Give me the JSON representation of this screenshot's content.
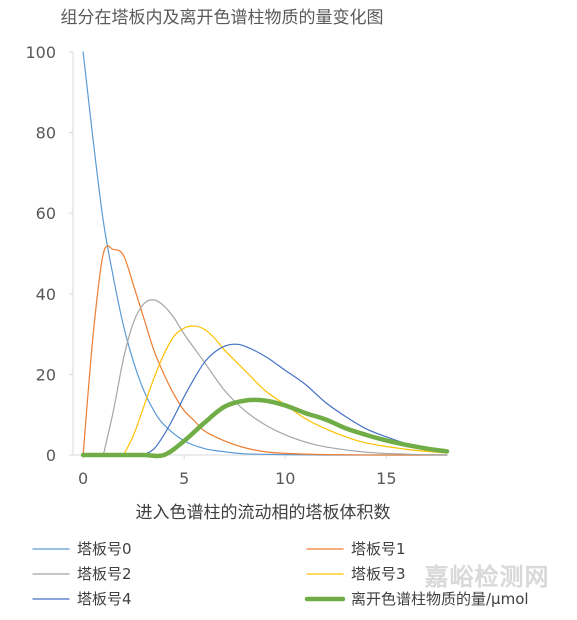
{
  "chart_data": {
    "type": "line",
    "title": "组分在塔板内及离开色谱柱物质的量变化图",
    "xlabel": "进入色谱柱的流动相的塔板体积数",
    "ylabel": "",
    "xlim": [
      -0.5,
      18
    ],
    "ylim": [
      0,
      100
    ],
    "xticks": [
      0,
      5,
      10,
      15
    ],
    "yticks": [
      0,
      20,
      40,
      60,
      80,
      100
    ],
    "grid": false,
    "legend_position": "bottom",
    "series": [
      {
        "name": "塔板号0",
        "color": "#5b9bd5",
        "width": 1.2,
        "x": [
          0,
          0.5,
          1,
          1.5,
          2,
          2.5,
          3,
          3.5,
          4,
          5,
          6,
          7,
          8,
          10,
          12,
          15,
          18
        ],
        "values": [
          100,
          78,
          58,
          44,
          32,
          23,
          16,
          11,
          7.5,
          3.5,
          1.6,
          0.8,
          0.3,
          0.1,
          0,
          0,
          0
        ]
      },
      {
        "name": "塔板号1",
        "color": "#ed7d31",
        "width": 1.2,
        "x": [
          0,
          0.5,
          1,
          1.5,
          2,
          2.5,
          3,
          3.5,
          4,
          4.5,
          5,
          5.5,
          6,
          7,
          8,
          9,
          10,
          12,
          15,
          18
        ],
        "values": [
          0,
          30,
          50,
          51,
          49.5,
          42,
          34,
          26,
          20,
          15,
          11,
          8.5,
          6,
          3.5,
          1.8,
          0.8,
          0.4,
          0.1,
          0,
          0
        ]
      },
      {
        "name": "塔板号2",
        "color": "#a5a5a5",
        "width": 1.2,
        "x": [
          1,
          1.5,
          2,
          2.5,
          3,
          3.5,
          4,
          4.5,
          5,
          6,
          7,
          8,
          9,
          10,
          11,
          12,
          14,
          16,
          18
        ],
        "values": [
          0,
          11,
          24,
          33,
          37.5,
          38.5,
          37,
          34,
          30,
          23,
          16,
          11,
          7.5,
          5,
          3.2,
          2,
          0.7,
          0.2,
          0
        ]
      },
      {
        "name": "塔板号3",
        "color": "#ffc000",
        "width": 1.2,
        "x": [
          2,
          2.5,
          3,
          3.5,
          4,
          4.5,
          5,
          5.5,
          6,
          6.5,
          7,
          8,
          9,
          10,
          11,
          12,
          13,
          14,
          16,
          18
        ],
        "values": [
          0,
          5,
          12,
          19,
          25,
          29.5,
          31.5,
          32,
          31.2,
          29,
          26,
          21,
          16,
          12.5,
          9,
          6.5,
          4.5,
          3,
          1.4,
          0.5
        ]
      },
      {
        "name": "塔板号4",
        "color": "#4472c4",
        "width": 1.2,
        "x": [
          3,
          3.5,
          4,
          4.5,
          5,
          5.5,
          6,
          6.5,
          7,
          7.5,
          8,
          9,
          10,
          11,
          12,
          13,
          14,
          15,
          16,
          17,
          18
        ],
        "values": [
          0,
          1.5,
          5,
          9.5,
          14.5,
          19,
          23,
          25.5,
          27,
          27.5,
          27,
          24.5,
          21,
          17.5,
          13,
          9.5,
          6.5,
          4.5,
          2.8,
          1.7,
          1
        ]
      },
      {
        "name": "离开色谱柱物质的量/μmol",
        "color": "#70ad47",
        "width": 4.5,
        "x": [
          0,
          1,
          2,
          3,
          4,
          5,
          6,
          7,
          8,
          9,
          10,
          11,
          12,
          13,
          14,
          15,
          16,
          17,
          18
        ],
        "values": [
          0,
          0,
          0,
          0,
          0,
          3.5,
          8,
          12,
          13.5,
          13.5,
          12.3,
          10.4,
          8.8,
          6.6,
          5,
          3.6,
          2.5,
          1.6,
          0.9
        ]
      }
    ]
  },
  "watermark": "嘉峪检测网"
}
